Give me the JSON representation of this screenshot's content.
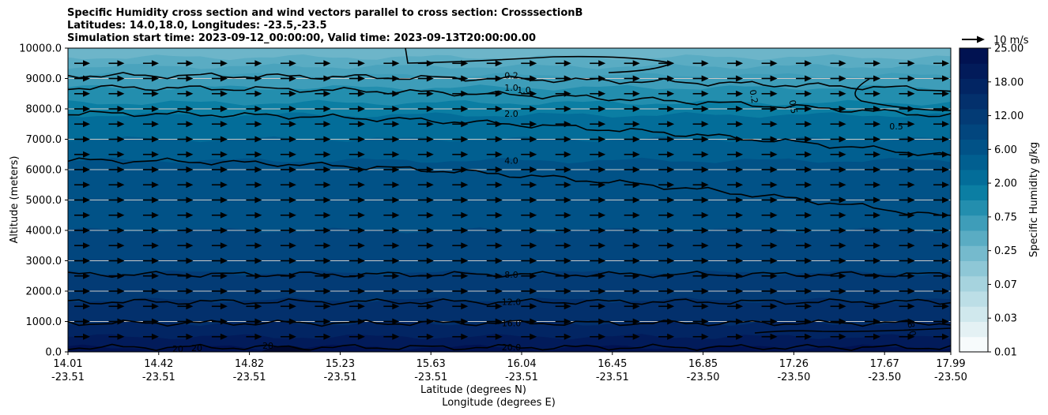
{
  "chart_data": {
    "type": "contourf",
    "title_lines": [
      "Specific Humidity cross section and wind vectors parallel to cross section: CrosssectionB",
      "Latitudes: 14.0,18.0, Longitudes: -23.5,-23.5",
      "Simulation start time: 2023-09-12_00:00:00, Valid time: 2023-09-13T20:00:00.00"
    ],
    "ylabel": "Altitude (meters)",
    "xlabel_lat": "Latitude (degrees N)",
    "xlabel_lon": "Longitude (degrees E)",
    "ylim": [
      0,
      10000
    ],
    "yticks": [
      "0.0",
      "1000.0",
      "2000.0",
      "3000.0",
      "4000.0",
      "5000.0",
      "6000.0",
      "7000.0",
      "8000.0",
      "9000.0",
      "10000.0"
    ],
    "x_ticks": [
      {
        "lat": "14.01",
        "lon": "-23.51"
      },
      {
        "lat": "14.42",
        "lon": "-23.51"
      },
      {
        "lat": "14.82",
        "lon": "-23.51"
      },
      {
        "lat": "15.23",
        "lon": "-23.51"
      },
      {
        "lat": "15.63",
        "lon": "-23.51"
      },
      {
        "lat": "16.04",
        "lon": "-23.51"
      },
      {
        "lat": "16.45",
        "lon": "-23.51"
      },
      {
        "lat": "16.85",
        "lon": "-23.50"
      },
      {
        "lat": "17.26",
        "lon": "-23.50"
      },
      {
        "lat": "17.67",
        "lon": "-23.50"
      },
      {
        "lat": "17.99",
        "lon": "-23.50"
      }
    ],
    "colorbar": {
      "label": "Specific Humidity g/kg",
      "tick_labels": [
        "0.01",
        "0.03",
        "0.07",
        "0.25",
        "0.75",
        "2.00",
        "6.00",
        "12.00",
        "18.00",
        "25.00"
      ],
      "colors": [
        "#f7fbfc",
        "#e4f1f4",
        "#d0e8ed",
        "#bcdee6",
        "#a6d3de",
        "#8ec7d6",
        "#75bacd",
        "#5aacc3",
        "#3e9db9",
        "#238eae",
        "#0b7ea3",
        "#036d99",
        "#015f90",
        "#015287",
        "#02467e",
        "#033b75",
        "#03306c",
        "#022563",
        "#021b5a",
        "#011251"
      ]
    },
    "quiver_key_label": "10 m/s",
    "contour_lines": [
      {
        "level": "0.2",
        "altitude_m": 9100
      },
      {
        "level": "1.0",
        "altitude_m": 8700
      },
      {
        "level": "2.0",
        "altitude_m": 7850
      },
      {
        "level": "4.0",
        "altitude_m": 6300
      },
      {
        "level": "8.0",
        "altitude_m": 2550
      },
      {
        "level": "12.0",
        "altitude_m": 1650
      },
      {
        "level": "16.0",
        "altitude_m": 950
      },
      {
        "level": "20.0",
        "altitude_m": 150
      }
    ],
    "extra_labels": [
      "1.0",
      "0.2",
      "0.5",
      "0.5",
      "8.0",
      "20",
      "20",
      "20"
    ]
  }
}
